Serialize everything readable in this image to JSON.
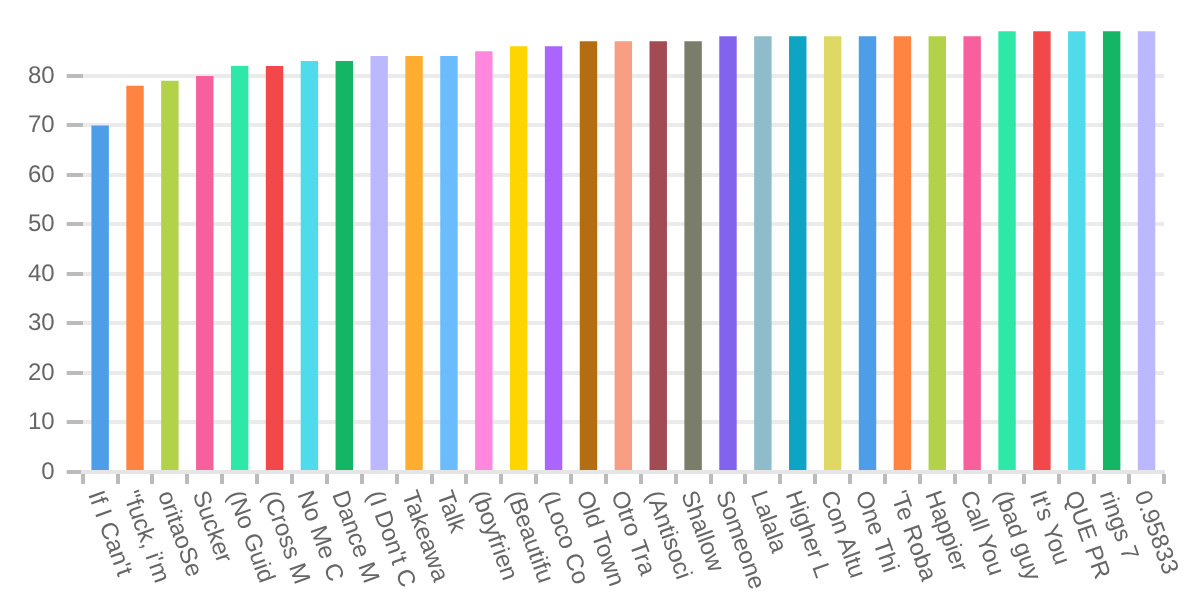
{
  "chart_data": {
    "type": "bar",
    "categories": [
      "If I Can't",
      "\"fuck, i'm",
      "oritaoSe",
      "Sucker",
      "(No Guid",
      "(Cross M",
      "No Me C",
      "Dance M",
      "(I Don't C",
      "Takeawa",
      "Talk",
      "(boyfrien",
      "(Beautifu",
      "(Loco Co",
      "Old Town",
      "Otro Tra",
      "(Antisoci",
      "Shallow",
      "Someone",
      "Lalala",
      "Higher L",
      "Con Altu",
      "One Thi",
      "'Te Roba",
      "Happier",
      "Call You",
      "(bad guy",
      "It's You",
      "QUE PR",
      "rings 7",
      "0.95833"
    ],
    "values": [
      70,
      78,
      79,
      80,
      82,
      82,
      83,
      83,
      84,
      84,
      84,
      85,
      86,
      86,
      87,
      87,
      87,
      87,
      88,
      88,
      88,
      88,
      88,
      88,
      88,
      88,
      89,
      89,
      89,
      89,
      89
    ],
    "colors": [
      "#4e9de8",
      "#ff8442",
      "#b3d24a",
      "#f7609c",
      "#2ee8a7",
      "#f2474b",
      "#4fdbec",
      "#14b665",
      "#bcb8fd",
      "#ffad30",
      "#6abcff",
      "#ff88dc",
      "#ffd500",
      "#a965fe",
      "#b56d12",
      "#f89e85",
      "#a24b54",
      "#797d6a",
      "#8163ee",
      "#8fbbca",
      "#0ea5c5",
      "#e0d865",
      "#4e9de8",
      "#ff8442",
      "#b3d24a",
      "#f7609c",
      "#2ee8a7",
      "#f2474b",
      "#4fdbec",
      "#14b665",
      "#bcb8fd"
    ],
    "ylim": [
      0,
      90
    ],
    "yticks": [
      0,
      10,
      20,
      30,
      40,
      50,
      60,
      70,
      80
    ],
    "grid": "y",
    "legend": false
  }
}
